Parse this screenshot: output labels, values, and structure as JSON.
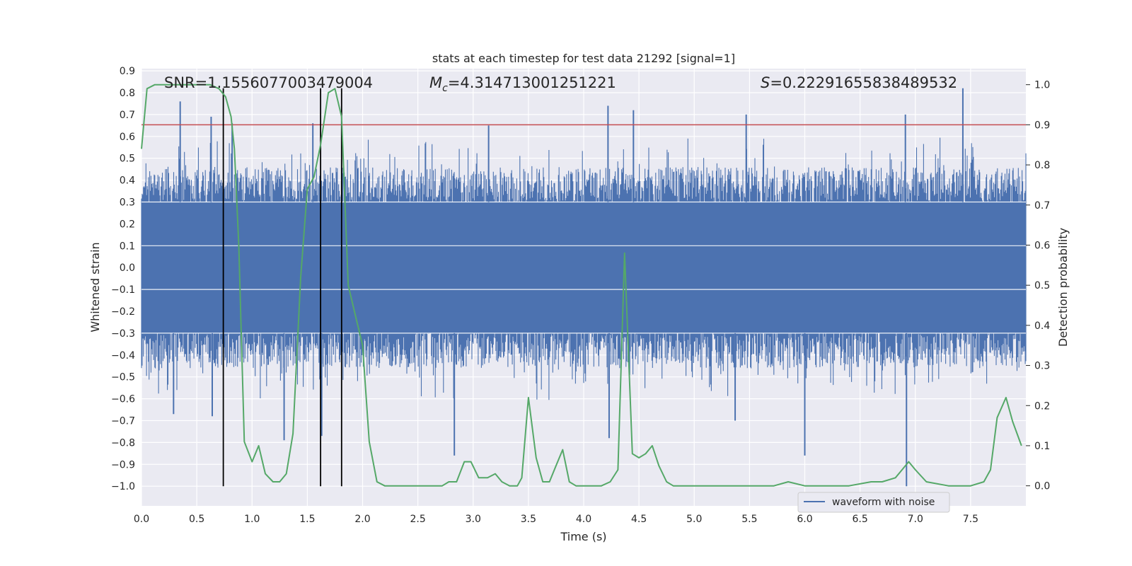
{
  "chart_data": {
    "type": "line",
    "title": "stats at each timestep for test data 21292 [signal=1]",
    "xlabel": "Time (s)",
    "ylabel_left": "Whitened strain",
    "ylabel_right": "Detection probability",
    "xlim": [
      0.0,
      8.0
    ],
    "ylim_left": [
      -1.09,
      0.91
    ],
    "ylim_right": [
      -0.05,
      1.04
    ],
    "xticks": [
      "0.0",
      "0.5",
      "1.0",
      "1.5",
      "2.0",
      "2.5",
      "3.0",
      "3.5",
      "4.0",
      "4.5",
      "5.0",
      "5.5",
      "6.0",
      "6.5",
      "7.0",
      "7.5"
    ],
    "xtick_values": [
      0.0,
      0.5,
      1.0,
      1.5,
      2.0,
      2.5,
      3.0,
      3.5,
      4.0,
      4.5,
      5.0,
      5.5,
      6.0,
      6.5,
      7.0,
      7.5
    ],
    "yticks_left": [
      "0.9",
      "0.8",
      "0.7",
      "0.6",
      "0.5",
      "0.4",
      "0.3",
      "0.2",
      "0.1",
      "0.0",
      "−0.1",
      "−0.2",
      "−0.3",
      "−0.4",
      "−0.5",
      "−0.6",
      "−0.7",
      "−0.8",
      "−0.9",
      "−1.0"
    ],
    "ytick_values_left": [
      0.9,
      0.8,
      0.7,
      0.6,
      0.5,
      0.4,
      0.3,
      0.2,
      0.1,
      0.0,
      -0.1,
      -0.2,
      -0.3,
      -0.4,
      -0.5,
      -0.6,
      -0.7,
      -0.8,
      -0.9,
      -1.0
    ],
    "yticks_right": [
      "1.0",
      "0.9",
      "0.8",
      "0.7",
      "0.6",
      "0.5",
      "0.4",
      "0.3",
      "0.2",
      "0.1",
      "0.0"
    ],
    "ytick_values_right": [
      1.0,
      0.9,
      0.8,
      0.7,
      0.6,
      0.5,
      0.4,
      0.3,
      0.2,
      0.1,
      0.0
    ],
    "annotations": {
      "snr": "SNR=1.1556077003479004",
      "mc_prefix": "M",
      "mc_sub": "c",
      "mc_value": "=4.314713001251221",
      "s_prefix": "S",
      "s_value": "=0.22291655838489532"
    },
    "threshold": {
      "value": 0.9,
      "axis": "right",
      "color": "#c44e52"
    },
    "event_markers": {
      "x": [
        0.74,
        1.62,
        1.81
      ],
      "ymin": -1.0,
      "ymax": 0.82,
      "color": "#000000"
    },
    "legend": {
      "placement": "lower right",
      "entries": [
        "waveform with noise"
      ]
    },
    "grid": true,
    "colors": {
      "background": "#eaeaf2",
      "grid": "#ffffff",
      "waveform": "#4c72b0",
      "probability": "#55a868"
    },
    "series": [
      {
        "name": "waveform with noise",
        "axis": "left",
        "kind": "noise-envelope",
        "x": [
          0.0,
          8.0
        ],
        "core_range": [
          -0.3,
          0.3
        ],
        "spike_peaks_upper": [
          {
            "x": 0.35,
            "y": 0.76
          },
          {
            "x": 0.63,
            "y": 0.69
          },
          {
            "x": 0.82,
            "y": 0.66
          },
          {
            "x": 1.55,
            "y": 0.66
          },
          {
            "x": 3.14,
            "y": 0.65
          },
          {
            "x": 4.22,
            "y": 0.74
          },
          {
            "x": 4.45,
            "y": 0.72
          },
          {
            "x": 5.47,
            "y": 0.7
          },
          {
            "x": 6.91,
            "y": 0.7
          },
          {
            "x": 7.43,
            "y": 0.82
          }
        ],
        "spike_peaks_lower": [
          {
            "x": 0.29,
            "y": -0.67
          },
          {
            "x": 0.64,
            "y": -0.68
          },
          {
            "x": 1.29,
            "y": -0.79
          },
          {
            "x": 1.63,
            "y": -0.77
          },
          {
            "x": 2.83,
            "y": -0.86
          },
          {
            "x": 4.23,
            "y": -0.78
          },
          {
            "x": 5.37,
            "y": -0.7
          },
          {
            "x": 6.0,
            "y": -0.86
          },
          {
            "x": 6.92,
            "y": -1.0
          }
        ]
      },
      {
        "name": "detection probability",
        "axis": "right",
        "x": [
          0.0,
          0.05,
          0.12,
          0.3,
          0.5,
          0.62,
          0.7,
          0.76,
          0.81,
          0.84,
          0.88,
          0.93,
          1.0,
          1.06,
          1.12,
          1.19,
          1.25,
          1.31,
          1.37,
          1.44,
          1.5,
          1.56,
          1.62,
          1.69,
          1.75,
          1.81,
          1.87,
          1.93,
          2.0,
          2.06,
          2.13,
          2.2,
          2.3,
          2.4,
          2.6,
          2.72,
          2.78,
          2.85,
          2.92,
          2.98,
          3.05,
          3.13,
          3.2,
          3.26,
          3.33,
          3.4,
          3.44,
          3.5,
          3.57,
          3.63,
          3.69,
          3.75,
          3.81,
          3.87,
          3.93,
          4.05,
          4.16,
          4.24,
          4.31,
          4.37,
          4.44,
          4.5,
          4.56,
          4.62,
          4.68,
          4.75,
          4.81,
          4.9,
          5.0,
          5.2,
          5.4,
          5.63,
          5.72,
          5.85,
          6.0,
          6.2,
          6.4,
          6.6,
          6.7,
          6.82,
          6.88,
          6.94,
          7.0,
          7.1,
          7.3,
          7.5,
          7.62,
          7.68,
          7.74,
          7.82,
          7.88,
          7.96
        ],
        "y": [
          0.84,
          0.99,
          1.0,
          1.0,
          1.0,
          1.0,
          0.99,
          0.97,
          0.92,
          0.84,
          0.6,
          0.11,
          0.06,
          0.1,
          0.03,
          0.01,
          0.01,
          0.03,
          0.13,
          0.52,
          0.74,
          0.77,
          0.85,
          0.98,
          0.99,
          0.92,
          0.5,
          0.43,
          0.35,
          0.11,
          0.01,
          0.0,
          0.0,
          0.0,
          0.0,
          0.0,
          0.01,
          0.01,
          0.06,
          0.06,
          0.02,
          0.02,
          0.03,
          0.01,
          0.0,
          0.0,
          0.02,
          0.22,
          0.07,
          0.01,
          0.01,
          0.05,
          0.09,
          0.01,
          0.0,
          0.0,
          0.0,
          0.01,
          0.04,
          0.58,
          0.08,
          0.07,
          0.08,
          0.1,
          0.05,
          0.01,
          0.0,
          0.0,
          0.0,
          0.0,
          0.0,
          0.0,
          0.0,
          0.01,
          0.0,
          0.0,
          0.0,
          0.01,
          0.01,
          0.02,
          0.04,
          0.06,
          0.04,
          0.01,
          0.0,
          0.0,
          0.01,
          0.04,
          0.17,
          0.22,
          0.16,
          0.1
        ]
      }
    ]
  }
}
